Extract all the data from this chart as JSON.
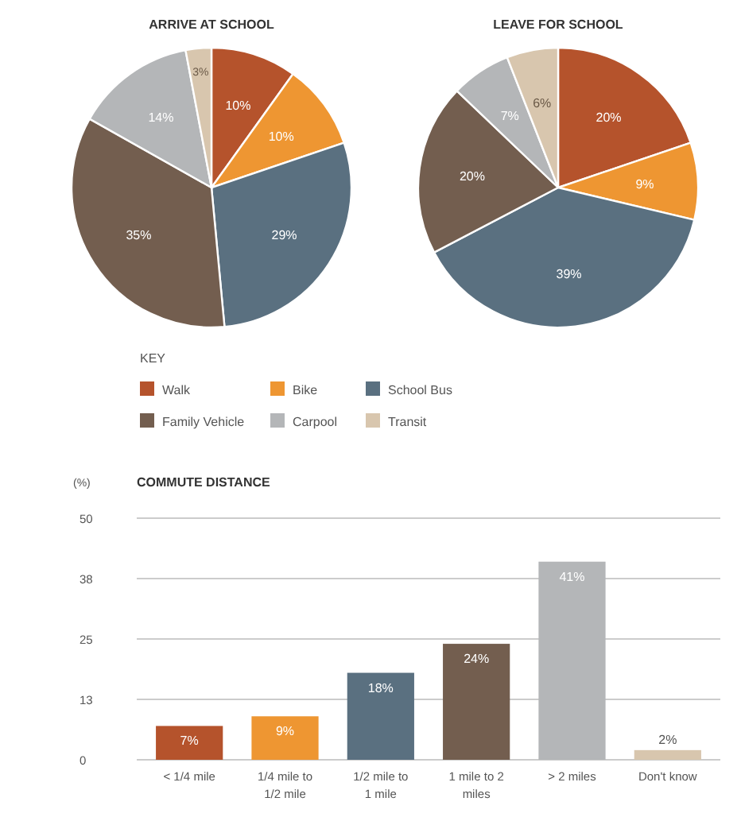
{
  "chart_data": [
    {
      "type": "pie",
      "title": "ARRIVE AT SCHOOL",
      "categories": [
        "Walk",
        "Bike",
        "School Bus",
        "Family Vehicle",
        "Carpool",
        "Transit"
      ],
      "values": [
        10,
        10,
        29,
        35,
        14,
        3
      ],
      "colors": [
        "#b5532c",
        "#ee9632",
        "#5a7080",
        "#735e4f",
        "#b4b6b8",
        "#d8c6ae"
      ],
      "value_labels": [
        "10%",
        "10%",
        "29%",
        "35%",
        "14%",
        "3%"
      ],
      "legend": "bottom",
      "legend_title": "KEY"
    },
    {
      "type": "pie",
      "title": "LEAVE FOR SCHOOL",
      "categories": [
        null,
        null,
        null,
        null,
        null,
        null
      ],
      "values": [
        20,
        9,
        39,
        20,
        7,
        6
      ],
      "colors": [
        "#b5532c",
        "#ee9632",
        "#5a7080",
        "#735e4f",
        "#b4b6b8",
        "#d8c6ae"
      ],
      "value_labels": [
        "20%",
        "9%",
        "39%",
        "20%",
        "7%",
        "6%"
      ]
    },
    {
      "type": "bar",
      "title": "COMMUTE DISTANCE",
      "ylabel": "(%)",
      "categories": [
        "< 1/4 mile",
        "1/4 mile to 1/2 mile",
        "1/2 mile to 1 mile",
        "1 mile to 2 miles",
        "> 2 miles",
        "Don't know"
      ],
      "values": [
        7,
        9,
        18,
        24,
        41,
        2
      ],
      "colors": [
        "#b5532c",
        "#ee9632",
        "#5a7080",
        "#735e4f",
        "#b4b6b8",
        "#d8c6ae"
      ],
      "value_labels": [
        "7%",
        "9%",
        "18%",
        "24%",
        "41%",
        "2%"
      ],
      "ylim": [
        0,
        50
      ],
      "yticks": [
        0,
        {
          "value": 12.5,
          "label": "13"
        },
        25,
        {
          "value": 37.5,
          "label": "38"
        },
        50
      ],
      "grid": "y"
    }
  ]
}
